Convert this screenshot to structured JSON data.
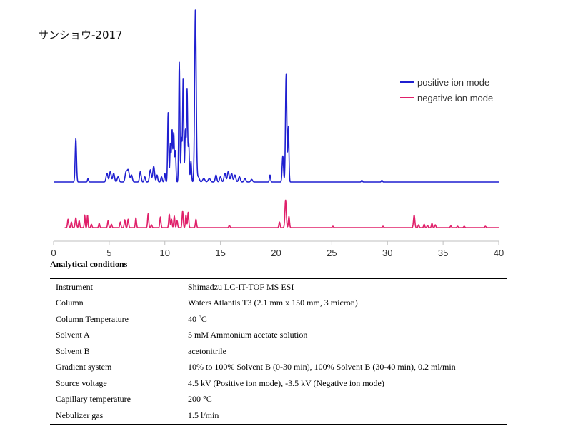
{
  "figure": {
    "sample_title": "サンショウ-2017"
  },
  "chart_data": {
    "type": "line",
    "xlim": [
      0,
      40
    ],
    "x_ticks": [
      "0",
      "5",
      "10",
      "15",
      "20",
      "25",
      "30",
      "35",
      "40"
    ],
    "grid": false,
    "legend_position": "top-right",
    "series": [
      {
        "name": "positive ion mode",
        "color": "#1f1fd0",
        "baseline_relative": 0,
        "peaks": [
          [
            2.0,
            0.25,
            0.06
          ],
          [
            3.1,
            0.02,
            0.05
          ],
          [
            4.8,
            0.05,
            0.08
          ],
          [
            5.1,
            0.06,
            0.08
          ],
          [
            5.4,
            0.05,
            0.08
          ],
          [
            5.8,
            0.03,
            0.08
          ],
          [
            6.5,
            0.05,
            0.08
          ],
          [
            6.7,
            0.07,
            0.1
          ],
          [
            7.0,
            0.04,
            0.08
          ],
          [
            7.8,
            0.06,
            0.07
          ],
          [
            8.2,
            0.03,
            0.06
          ],
          [
            8.7,
            0.07,
            0.08
          ],
          [
            9.0,
            0.09,
            0.08
          ],
          [
            9.3,
            0.04,
            0.06
          ],
          [
            9.7,
            0.03,
            0.06
          ],
          [
            10.0,
            0.05,
            0.05
          ],
          [
            10.3,
            0.4,
            0.05
          ],
          [
            10.5,
            0.22,
            0.05
          ],
          [
            10.65,
            0.3,
            0.05
          ],
          [
            10.8,
            0.28,
            0.05
          ],
          [
            10.95,
            0.18,
            0.05
          ],
          [
            11.3,
            0.69,
            0.05
          ],
          [
            11.5,
            0.25,
            0.05
          ],
          [
            11.65,
            0.6,
            0.05
          ],
          [
            11.85,
            0.3,
            0.05
          ],
          [
            12.0,
            0.53,
            0.05
          ],
          [
            12.15,
            0.22,
            0.05
          ],
          [
            12.35,
            0.12,
            0.05
          ],
          [
            12.75,
            1.0,
            0.07
          ],
          [
            13.0,
            0.03,
            0.1
          ],
          [
            13.5,
            0.02,
            0.1
          ],
          [
            14.0,
            0.02,
            0.1
          ],
          [
            14.6,
            0.04,
            0.07
          ],
          [
            15.0,
            0.03,
            0.08
          ],
          [
            15.4,
            0.05,
            0.08
          ],
          [
            15.7,
            0.06,
            0.08
          ],
          [
            16.0,
            0.05,
            0.08
          ],
          [
            16.3,
            0.04,
            0.08
          ],
          [
            16.7,
            0.03,
            0.08
          ],
          [
            17.2,
            0.02,
            0.08
          ],
          [
            17.8,
            0.015,
            0.08
          ],
          [
            19.45,
            0.04,
            0.05
          ],
          [
            20.6,
            0.15,
            0.06
          ],
          [
            20.9,
            0.62,
            0.06
          ],
          [
            21.1,
            0.32,
            0.05
          ],
          [
            27.7,
            0.01,
            0.05
          ],
          [
            29.5,
            0.01,
            0.05
          ]
        ]
      },
      {
        "name": "negative ion mode",
        "color": "#e0206a",
        "baseline_relative": 0,
        "peaks": [
          [
            1.3,
            0.3,
            0.05
          ],
          [
            1.6,
            0.2,
            0.05
          ],
          [
            2.0,
            0.35,
            0.06
          ],
          [
            2.3,
            0.25,
            0.05
          ],
          [
            2.8,
            0.45,
            0.04
          ],
          [
            3.05,
            0.45,
            0.04
          ],
          [
            3.4,
            0.12,
            0.05
          ],
          [
            4.1,
            0.15,
            0.05
          ],
          [
            4.9,
            0.25,
            0.05
          ],
          [
            5.2,
            0.12,
            0.05
          ],
          [
            6.0,
            0.2,
            0.05
          ],
          [
            6.4,
            0.28,
            0.05
          ],
          [
            6.7,
            0.3,
            0.05
          ],
          [
            7.4,
            0.35,
            0.05
          ],
          [
            8.5,
            0.5,
            0.05
          ],
          [
            8.8,
            0.1,
            0.05
          ],
          [
            9.6,
            0.38,
            0.05
          ],
          [
            10.4,
            0.48,
            0.05
          ],
          [
            10.6,
            0.3,
            0.05
          ],
          [
            10.85,
            0.42,
            0.05
          ],
          [
            11.1,
            0.25,
            0.05
          ],
          [
            11.6,
            0.6,
            0.05
          ],
          [
            11.9,
            0.45,
            0.05
          ],
          [
            12.1,
            0.55,
            0.05
          ],
          [
            12.8,
            0.3,
            0.05
          ],
          [
            15.8,
            0.08,
            0.05
          ],
          [
            20.3,
            0.2,
            0.05
          ],
          [
            20.85,
            1.0,
            0.06
          ],
          [
            21.15,
            0.4,
            0.05
          ],
          [
            25.1,
            0.05,
            0.05
          ],
          [
            29.6,
            0.05,
            0.05
          ],
          [
            32.4,
            0.45,
            0.06
          ],
          [
            32.8,
            0.1,
            0.05
          ],
          [
            33.3,
            0.12,
            0.05
          ],
          [
            33.6,
            0.08,
            0.05
          ],
          [
            34.0,
            0.15,
            0.05
          ],
          [
            34.3,
            0.1,
            0.05
          ],
          [
            35.7,
            0.06,
            0.05
          ],
          [
            36.3,
            0.05,
            0.05
          ],
          [
            36.9,
            0.05,
            0.05
          ],
          [
            38.8,
            0.05,
            0.05
          ]
        ]
      }
    ]
  },
  "conditions": {
    "heading": "Analytical conditions",
    "rows": [
      {
        "key": "Instrument",
        "value": "Shimadzu LC-IT-TOF MS ESI"
      },
      {
        "key": "Column",
        "value": "Waters Atlantis T3 (2.1 mm x 150 mm, 3 micron)"
      },
      {
        "key": "Column Temperature",
        "value": "40 ºC"
      },
      {
        "key": "Solvent A",
        "value": "5 mM Ammonium acetate solution"
      },
      {
        "key": "Solvent B",
        "value": "acetonitrile"
      },
      {
        "key": "Gradient system",
        "value": "10% to 100% Solvent B (0-30 min), 100% Solvent B (30-40 min), 0.2 ml/min"
      },
      {
        "key": "Source voltage",
        "value": "4.5 kV (Positive ion mode), -3.5 kV (Negative ion mode)"
      },
      {
        "key": "Capillary temperature",
        "value": "200 °C"
      },
      {
        "key": "Nebulizer gas",
        "value": "1.5 l/min"
      }
    ]
  }
}
